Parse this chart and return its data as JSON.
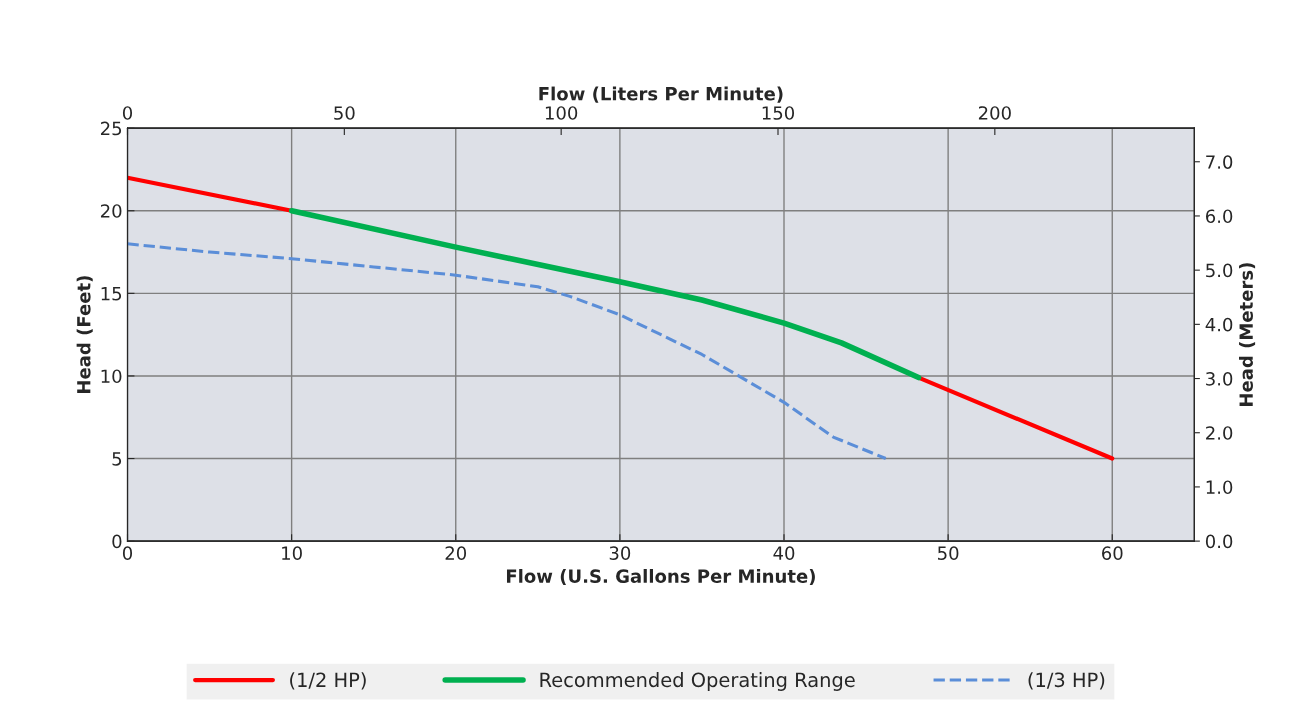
{
  "chart_data": {
    "type": "line",
    "xlabel": "Flow (U.S. Gallons Per Minute)",
    "ylabel": "Head (Feet)",
    "y2label": "Head (Meters)",
    "x2label": "Flow (Liters Per Minute)",
    "xlim": [
      0,
      65
    ],
    "xticks": [
      0,
      10,
      20,
      30,
      40,
      50,
      60
    ],
    "ylim": [
      0,
      25
    ],
    "yticks": [
      0,
      5,
      10,
      15,
      20,
      25
    ],
    "x2lim": [
      0,
      246
    ],
    "x2ticks": [
      0,
      50,
      100,
      150,
      200
    ],
    "y2lim": [
      0,
      7.62
    ],
    "y2ticks": [
      {
        "value": 0,
        "label": "0.0"
      },
      {
        "value": 1,
        "label": "1.0"
      },
      {
        "value": 2,
        "label": "2.0"
      },
      {
        "value": 3,
        "label": "3.0"
      },
      {
        "value": 4,
        "label": "4.0"
      },
      {
        "value": 5,
        "label": "5.0"
      },
      {
        "value": 6,
        "label": "6.0"
      },
      {
        "value": 7,
        "label": "7.0"
      }
    ],
    "grid": true,
    "legend": "bottom",
    "marker": "none",
    "series": [
      {
        "name": "(1/2 HP)",
        "color": "#ff0000",
        "line_style": "solid",
        "x": [
          0,
          10,
          29,
          48.2,
          60
        ],
        "values": [
          22,
          20,
          null,
          9.9,
          5
        ]
      },
      {
        "name": "Recommended Operating Range",
        "color": "#00b050",
        "line_style": "solid",
        "x": [
          10,
          20,
          30,
          35,
          40,
          43.5,
          48.2
        ],
        "values": [
          20,
          17.8,
          15.7,
          14.6,
          13.2,
          12,
          9.9
        ]
      },
      {
        "name": "(1/3 HP)",
        "color": "#5b8ed8",
        "line_style": "dashed",
        "x": [
          0,
          5,
          10,
          15,
          20,
          25,
          27,
          30,
          35,
          40,
          43,
          46.2
        ],
        "values": [
          18,
          17.5,
          17.1,
          16.6,
          16.1,
          15.4,
          14.8,
          13.7,
          11.3,
          8.4,
          6.3,
          5
        ]
      }
    ]
  }
}
